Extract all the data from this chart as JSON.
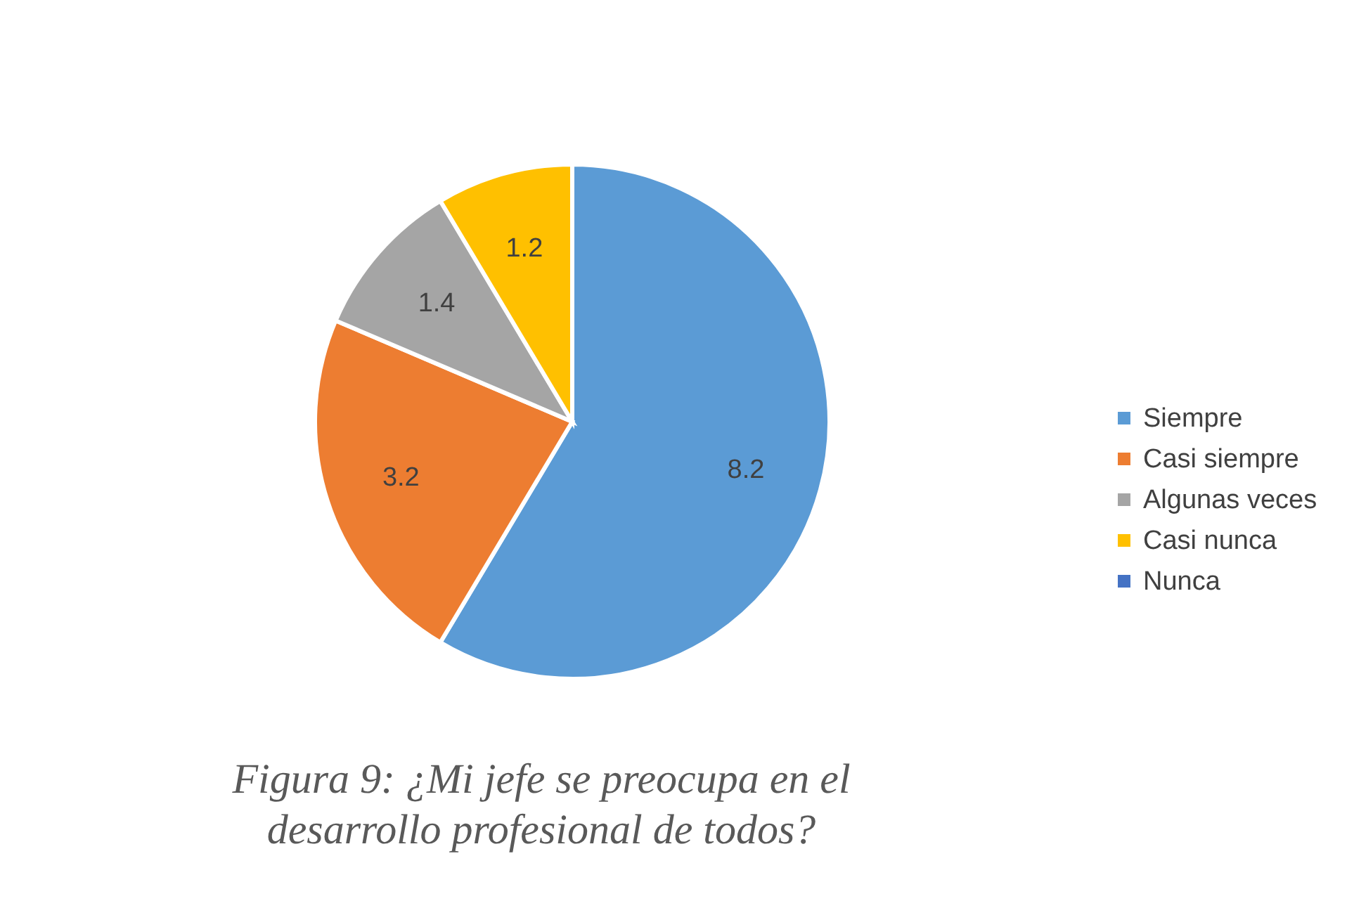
{
  "chart_data": {
    "type": "pie",
    "categories": [
      "Siempre",
      "Casi siempre",
      "Algunas veces",
      "Casi nunca",
      "Nunca"
    ],
    "values": [
      8.2,
      3.2,
      1.4,
      1.2,
      0
    ],
    "colors": [
      "#5b9bd5",
      "#ed7d31",
      "#a5a5a5",
      "#ffc000",
      "#4472c4"
    ],
    "value_labels": [
      "8.2",
      "3.2",
      "1.4",
      "1.2",
      null
    ],
    "legend": "right",
    "annotations": [
      "Figura 9: ¿Mi jefe se preocupa en el desarrollo profesional de todos?"
    ]
  }
}
